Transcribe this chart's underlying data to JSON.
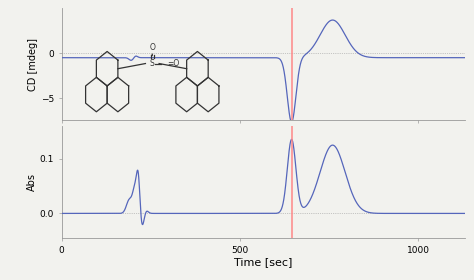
{
  "xlim": [
    0,
    1130
  ],
  "red_line_x": 645,
  "cd_ylim": [
    -7.5,
    5
  ],
  "cd_yticks": [
    -5,
    0
  ],
  "abs_ylim": [
    -0.045,
    0.16
  ],
  "abs_yticks": [
    0,
    0.1
  ],
  "line_color": "#5566bb",
  "red_color": "#ff8888",
  "dotted_color": "#999999",
  "background": "#f2f2ee",
  "xlabel": "Time [sec]",
  "cd_ylabel": "CD [mdeg]",
  "abs_ylabel": "Abs",
  "xticks": [
    0,
    500,
    1000
  ]
}
